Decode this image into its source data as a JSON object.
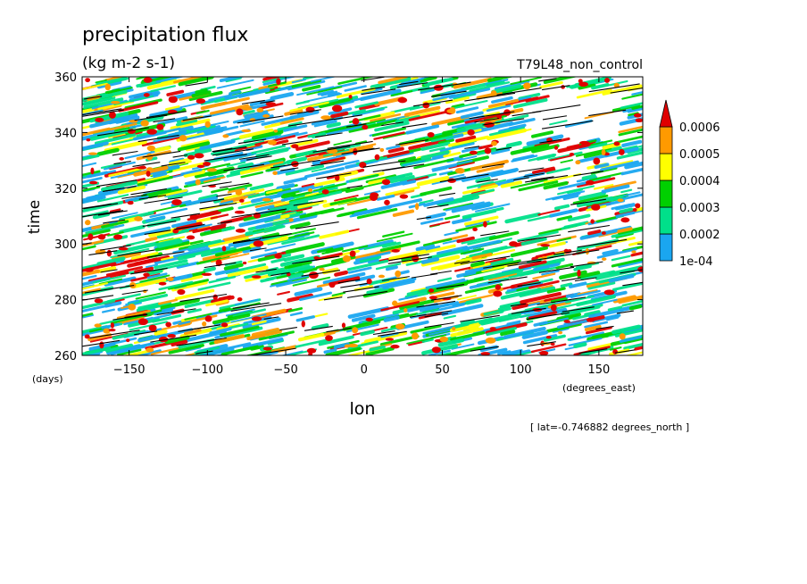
{
  "chart_data": {
    "type": "heatmap",
    "title": "precipitation flux",
    "subtitle": "(kg m-2 s-1)",
    "run_label": "T79L48_non_control",
    "footnote": "[ lat=-0.746882 degrees_north ]",
    "xlabel": "lon",
    "x_units": "(degrees_east)",
    "ylabel": "time",
    "y_units": "(days)",
    "xlim": [
      -180,
      178
    ],
    "ylim": [
      260,
      360
    ],
    "x_ticks": [
      -150,
      -100,
      -50,
      0,
      50,
      100,
      150
    ],
    "y_ticks": [
      260,
      280,
      300,
      320,
      340,
      360
    ],
    "x_tick_labels": [
      "−150",
      "−100",
      "−50",
      "0",
      "50",
      "100",
      "150"
    ],
    "colorbar": {
      "levels": [
        0.0001,
        0.0002,
        0.0003,
        0.0004,
        0.0005,
        0.0006
      ],
      "labels": [
        "1e-04",
        "0.0002",
        "0.0003",
        "0.0004",
        "0.0005",
        "0.0006"
      ],
      "colors": [
        "#1aa6f0",
        "#00e08a",
        "#00d000",
        "#ffff00",
        "#ff9a00",
        "#e00000"
      ],
      "extend": "max"
    },
    "pattern": "eastward-propagating streaks of precipitation (slanted bands) across all longitudes"
  }
}
